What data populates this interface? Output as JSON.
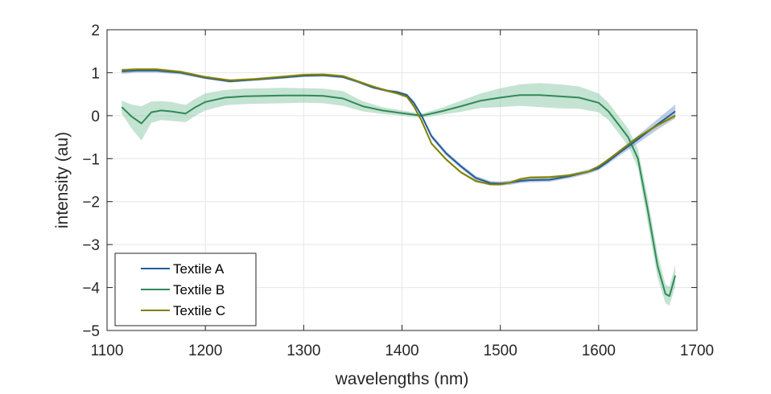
{
  "chart_data": {
    "type": "line",
    "xlabel": "wavelengths (nm)",
    "ylabel": "intensity (au)",
    "xlim": [
      1100,
      1700
    ],
    "ylim": [
      -5,
      2
    ],
    "xticks": [
      1100,
      1200,
      1300,
      1400,
      1500,
      1600,
      1700
    ],
    "yticks": [
      2,
      1,
      0,
      -1,
      -2,
      -3,
      -4,
      -5
    ],
    "ytick_labels": [
      "2",
      "1",
      "0",
      "−1",
      "−2",
      "−3",
      "−4",
      "−5"
    ],
    "grid": true,
    "legend_position": "bottom-left",
    "series": [
      {
        "name": "Textile A",
        "color": "#1f5c99",
        "band_color": "#6a8fc0",
        "x": [
          1115,
          1130,
          1150,
          1175,
          1200,
          1225,
          1250,
          1275,
          1300,
          1320,
          1340,
          1355,
          1370,
          1385,
          1395,
          1405,
          1412,
          1420,
          1430,
          1445,
          1460,
          1475,
          1490,
          1500,
          1510,
          1520,
          1530,
          1550,
          1570,
          1590,
          1600,
          1610,
          1620,
          1640,
          1660,
          1678
        ],
        "y": [
          1.03,
          1.05,
          1.05,
          1.0,
          0.88,
          0.8,
          0.84,
          0.88,
          0.93,
          0.94,
          0.9,
          0.79,
          0.66,
          0.58,
          0.55,
          0.48,
          0.3,
          0.0,
          -0.48,
          -0.88,
          -1.18,
          -1.45,
          -1.57,
          -1.58,
          -1.56,
          -1.52,
          -1.5,
          -1.49,
          -1.41,
          -1.3,
          -1.22,
          -1.06,
          -0.88,
          -0.55,
          -0.2,
          0.1
        ],
        "band": [
          0.06,
          0.05,
          0.05,
          0.04,
          0.03,
          0.03,
          0.03,
          0.03,
          0.03,
          0.03,
          0.03,
          0.03,
          0.03,
          0.03,
          0.03,
          0.03,
          0.04,
          0.04,
          0.05,
          0.05,
          0.05,
          0.05,
          0.05,
          0.05,
          0.05,
          0.05,
          0.05,
          0.05,
          0.05,
          0.05,
          0.05,
          0.06,
          0.07,
          0.09,
          0.12,
          0.16
        ]
      },
      {
        "name": "Textile B",
        "color": "#2e8b57",
        "band_color": "#7fc29b",
        "x": [
          1115,
          1125,
          1135,
          1145,
          1155,
          1165,
          1180,
          1190,
          1200,
          1220,
          1240,
          1260,
          1280,
          1300,
          1320,
          1340,
          1360,
          1380,
          1400,
          1420,
          1440,
          1460,
          1480,
          1500,
          1520,
          1540,
          1560,
          1580,
          1600,
          1610,
          1620,
          1630,
          1640,
          1650,
          1660,
          1668,
          1672,
          1678
        ],
        "y": [
          0.2,
          -0.02,
          -0.18,
          0.08,
          0.12,
          0.1,
          0.05,
          0.2,
          0.32,
          0.42,
          0.45,
          0.46,
          0.47,
          0.47,
          0.46,
          0.4,
          0.22,
          0.12,
          0.06,
          0.0,
          0.1,
          0.22,
          0.35,
          0.42,
          0.48,
          0.48,
          0.45,
          0.42,
          0.3,
          0.1,
          -0.2,
          -0.5,
          -1.0,
          -2.2,
          -3.5,
          -4.15,
          -4.2,
          -3.72
        ],
        "band": [
          0.15,
          0.28,
          0.4,
          0.25,
          0.22,
          0.22,
          0.2,
          0.2,
          0.2,
          0.18,
          0.18,
          0.18,
          0.18,
          0.17,
          0.17,
          0.17,
          0.12,
          0.08,
          0.06,
          0.05,
          0.08,
          0.13,
          0.17,
          0.22,
          0.25,
          0.28,
          0.28,
          0.26,
          0.22,
          0.2,
          0.2,
          0.2,
          0.22,
          0.3,
          0.28,
          0.22,
          0.22,
          0.25
        ]
      },
      {
        "name": "Textile C",
        "color": "#808000",
        "band_color": "#b5b56a",
        "x": [
          1115,
          1130,
          1150,
          1175,
          1200,
          1225,
          1250,
          1275,
          1300,
          1320,
          1340,
          1355,
          1370,
          1385,
          1395,
          1405,
          1412,
          1420,
          1430,
          1445,
          1460,
          1475,
          1490,
          1500,
          1510,
          1520,
          1530,
          1550,
          1570,
          1590,
          1600,
          1610,
          1620,
          1640,
          1660,
          1678
        ],
        "y": [
          1.06,
          1.08,
          1.08,
          1.02,
          0.9,
          0.82,
          0.85,
          0.9,
          0.95,
          0.96,
          0.92,
          0.8,
          0.68,
          0.58,
          0.52,
          0.44,
          0.22,
          -0.12,
          -0.65,
          -1.02,
          -1.32,
          -1.52,
          -1.6,
          -1.6,
          -1.56,
          -1.48,
          -1.44,
          -1.43,
          -1.39,
          -1.3,
          -1.18,
          -1.02,
          -0.85,
          -0.5,
          -0.22,
          0.0
        ],
        "band": [
          0.03,
          0.03,
          0.03,
          0.03,
          0.03,
          0.03,
          0.03,
          0.03,
          0.03,
          0.03,
          0.03,
          0.03,
          0.03,
          0.03,
          0.03,
          0.03,
          0.03,
          0.03,
          0.03,
          0.03,
          0.03,
          0.03,
          0.03,
          0.03,
          0.03,
          0.03,
          0.03,
          0.03,
          0.03,
          0.03,
          0.03,
          0.03,
          0.03,
          0.03,
          0.04,
          0.05
        ]
      }
    ]
  }
}
